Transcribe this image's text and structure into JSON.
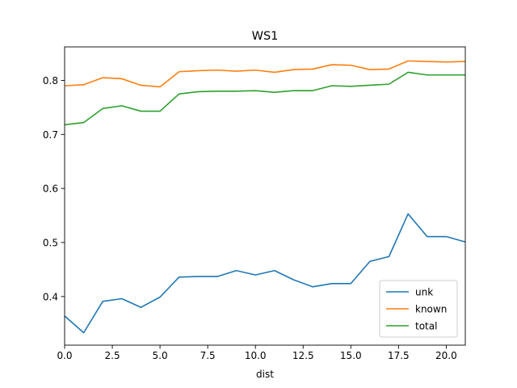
{
  "chart_data": {
    "type": "line",
    "title": "WS1",
    "xlabel": "dist",
    "ylabel": "",
    "xlim": [
      0,
      21
    ],
    "ylim": [
      0.31,
      0.862
    ],
    "x": [
      0,
      1,
      2,
      3,
      4,
      5,
      6,
      7,
      8,
      9,
      10,
      11,
      12,
      13,
      14,
      15,
      16,
      17,
      18,
      19,
      20,
      21
    ],
    "xticks": [
      0,
      2.5,
      5,
      7.5,
      10,
      12.5,
      15,
      17.5,
      20
    ],
    "xtick_labels": [
      "0.0",
      "2.5",
      "5.0",
      "7.5",
      "10.0",
      "12.5",
      "15.0",
      "17.5",
      "20.0"
    ],
    "yticks": [
      0.4,
      0.5,
      0.6,
      0.7,
      0.8
    ],
    "ytick_labels": [
      "0.4",
      "0.5",
      "0.6",
      "0.7",
      "0.8"
    ],
    "grid": false,
    "legend_position": "lower-right",
    "series": [
      {
        "name": "unk",
        "color": "#1f77b4",
        "values": [
          0.364,
          0.333,
          0.391,
          0.396,
          0.38,
          0.399,
          0.436,
          0.437,
          0.437,
          0.448,
          0.44,
          0.448,
          0.431,
          0.418,
          0.424,
          0.424,
          0.465,
          0.474,
          0.553,
          0.511,
          0.511,
          0.501
        ]
      },
      {
        "name": "known",
        "color": "#ff7f0e",
        "values": [
          0.79,
          0.792,
          0.805,
          0.803,
          0.791,
          0.788,
          0.816,
          0.818,
          0.819,
          0.817,
          0.819,
          0.815,
          0.82,
          0.821,
          0.829,
          0.828,
          0.82,
          0.821,
          0.836,
          0.835,
          0.834,
          0.835
        ]
      },
      {
        "name": "total",
        "color": "#2ca02c",
        "values": [
          0.718,
          0.722,
          0.748,
          0.753,
          0.743,
          0.743,
          0.775,
          0.779,
          0.78,
          0.78,
          0.781,
          0.778,
          0.781,
          0.781,
          0.79,
          0.789,
          0.791,
          0.793,
          0.815,
          0.81,
          0.81,
          0.81
        ]
      }
    ]
  }
}
